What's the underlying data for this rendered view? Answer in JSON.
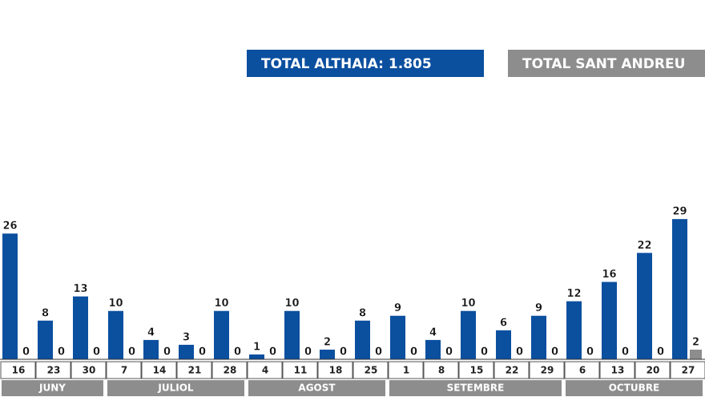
{
  "chart_data": {
    "type": "bar",
    "months": [
      {
        "name": "JUNY",
        "days": [
          "16",
          "23",
          "30"
        ]
      },
      {
        "name": "JULIOL",
        "days": [
          "7",
          "14",
          "21",
          "28"
        ]
      },
      {
        "name": "AGOST",
        "days": [
          "4",
          "11",
          "18",
          "25"
        ]
      },
      {
        "name": "SETEMBRE",
        "days": [
          "1",
          "8",
          "15",
          "22",
          "29"
        ]
      },
      {
        "name": "OCTUBRE",
        "days": [
          "6",
          "13",
          "20",
          "27"
        ]
      }
    ],
    "series": [
      {
        "name": "TOTAL ALTHAIA: 1.805",
        "color": "#0b4f9f",
        "values": [
          26,
          8,
          13,
          10,
          4,
          3,
          10,
          1,
          10,
          2,
          8,
          9,
          4,
          10,
          6,
          9,
          12,
          16,
          22,
          29
        ]
      },
      {
        "name": "TOTAL SANT ANDREU",
        "color": "#8d8d8d",
        "values": [
          0,
          0,
          0,
          0,
          0,
          0,
          0,
          0,
          0,
          0,
          0,
          0,
          0,
          0,
          0,
          0,
          0,
          0,
          0,
          2
        ]
      }
    ]
  }
}
